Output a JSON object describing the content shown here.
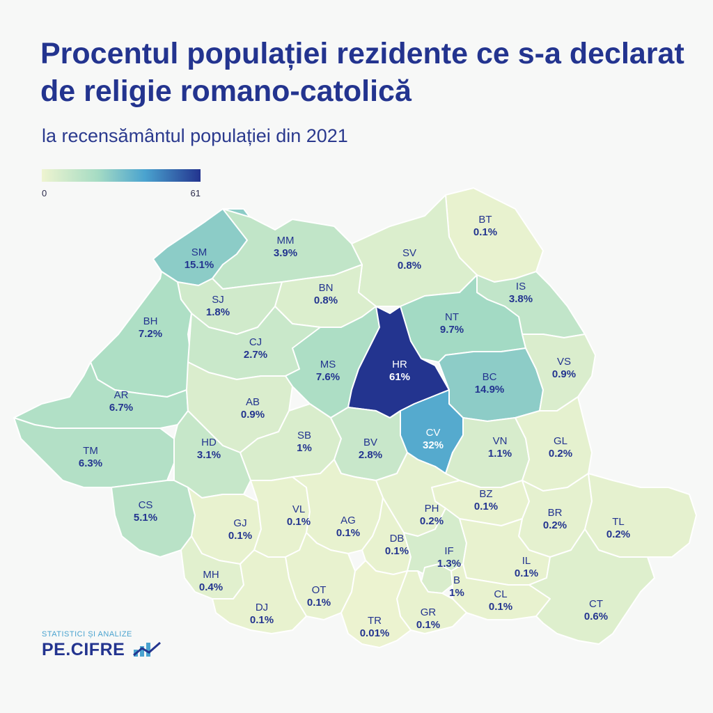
{
  "header": {
    "title": "Procentul populației rezidente ce s-a declarat de religie romano-catolică",
    "subtitle": "la recensământul populației din 2021"
  },
  "legend": {
    "min": "0",
    "max": "61",
    "min_value": 0,
    "max_value": 61
  },
  "colors": {
    "low": "#eef4d0",
    "mid1": "#a6dcc4",
    "mid2": "#4aa3cf",
    "high": "#23348f"
  },
  "counties": [
    {
      "code": "SM",
      "label": "15.1%",
      "value": 15.1
    },
    {
      "code": "MM",
      "label": "3.9%",
      "value": 3.9
    },
    {
      "code": "BT",
      "label": "0.1%",
      "value": 0.1
    },
    {
      "code": "SV",
      "label": "0.8%",
      "value": 0.8
    },
    {
      "code": "SJ",
      "label": "1.8%",
      "value": 1.8
    },
    {
      "code": "BN",
      "label": "0.8%",
      "value": 0.8
    },
    {
      "code": "IS",
      "label": "3.8%",
      "value": 3.8
    },
    {
      "code": "BH",
      "label": "7.2%",
      "value": 7.2
    },
    {
      "code": "NT",
      "label": "9.7%",
      "value": 9.7
    },
    {
      "code": "CJ",
      "label": "2.7%",
      "value": 2.7
    },
    {
      "code": "MS",
      "label": "7.6%",
      "value": 7.6
    },
    {
      "code": "HR",
      "label": "61%",
      "value": 61
    },
    {
      "code": "BC",
      "label": "14.9%",
      "value": 14.9
    },
    {
      "code": "VS",
      "label": "0.9%",
      "value": 0.9
    },
    {
      "code": "AR",
      "label": "6.7%",
      "value": 6.7
    },
    {
      "code": "AB",
      "label": "0.9%",
      "value": 0.9
    },
    {
      "code": "TM",
      "label": "6.3%",
      "value": 6.3
    },
    {
      "code": "HD",
      "label": "3.1%",
      "value": 3.1
    },
    {
      "code": "SB",
      "label": "1%",
      "value": 1
    },
    {
      "code": "BV",
      "label": "2.8%",
      "value": 2.8
    },
    {
      "code": "CV",
      "label": "32%",
      "value": 32
    },
    {
      "code": "VN",
      "label": "1.1%",
      "value": 1.1
    },
    {
      "code": "GL",
      "label": "0.2%",
      "value": 0.2
    },
    {
      "code": "CS",
      "label": "5.1%",
      "value": 5.1
    },
    {
      "code": "BZ",
      "label": "0.1%",
      "value": 0.1
    },
    {
      "code": "PH",
      "label": "0.2%",
      "value": 0.2
    },
    {
      "code": "GJ",
      "label": "0.1%",
      "value": 0.1
    },
    {
      "code": "VL",
      "label": "0.1%",
      "value": 0.1
    },
    {
      "code": "AG",
      "label": "0.1%",
      "value": 0.1
    },
    {
      "code": "BR",
      "label": "0.2%",
      "value": 0.2
    },
    {
      "code": "TL",
      "label": "0.2%",
      "value": 0.2
    },
    {
      "code": "DB",
      "label": "0.1%",
      "value": 0.1
    },
    {
      "code": "IF",
      "label": "1.3%",
      "value": 1.3
    },
    {
      "code": "IL",
      "label": "0.1%",
      "value": 0.1
    },
    {
      "code": "MH",
      "label": "0.4%",
      "value": 0.4
    },
    {
      "code": "B",
      "label": "1%",
      "value": 1
    },
    {
      "code": "OT",
      "label": "0.1%",
      "value": 0.1
    },
    {
      "code": "CL",
      "label": "0.1%",
      "value": 0.1
    },
    {
      "code": "DJ",
      "label": "0.1%",
      "value": 0.1
    },
    {
      "code": "GR",
      "label": "0.1%",
      "value": 0.1
    },
    {
      "code": "TR",
      "label": "0.01%",
      "value": 0.01
    },
    {
      "code": "CT",
      "label": "0.6%",
      "value": 0.6
    }
  ],
  "logo": {
    "tagline": "STATISTICI ȘI ANALIZE",
    "name": "PE.CIFRE"
  }
}
